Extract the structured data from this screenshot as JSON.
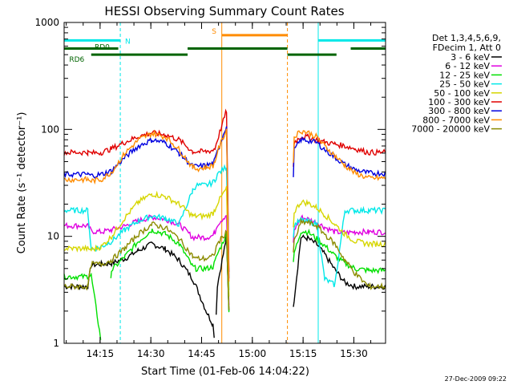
{
  "chart_data": {
    "type": "line",
    "title": "HESSI Observing Summary Count Rates",
    "xlabel": "Start Time (01-Feb-06 14:04:22)",
    "ylabel": "Count Rate (s⁻¹ detector⁻¹)",
    "yscale": "log",
    "ylim": [
      1,
      1000
    ],
    "xlim_minutes": [
      0,
      95
    ],
    "x_unit": "minutes after 14:04:22",
    "y_tick_labels": [
      "1",
      "10",
      "100",
      "1000"
    ],
    "y_tick_values": [
      1,
      10,
      100,
      1000
    ],
    "x_tick_labels": [
      "14:15",
      "14:30",
      "14:45",
      "15:00",
      "15:15",
      "15:30"
    ],
    "x_tick_values": [
      10.63,
      25.63,
      40.63,
      55.63,
      70.63,
      85.63
    ],
    "legend_header": [
      "Det 1,3,4,5,6,9,",
      "FDecim 1, Att 0"
    ],
    "legend_placement": "right",
    "series": [
      {
        "name": "3 - 6 keV",
        "color": "#000000",
        "x": [
          0,
          7,
          8,
          11,
          14,
          18,
          22,
          26,
          30,
          34,
          38,
          39,
          42,
          44,
          44.6,
          45.3,
          48,
          49,
          53,
          62,
          66,
          68,
          70,
          72,
          74.7,
          77,
          80,
          83,
          86,
          90,
          95
        ],
        "y": [
          3.4,
          3.4,
          5.4,
          5.5,
          5.6,
          6.2,
          7.4,
          8.5,
          7.6,
          6.0,
          4.0,
          3.4,
          2.0,
          1.5,
          1.0,
          3.5,
          9.8,
          1.0,
          1.0,
          1.0,
          1.0,
          2.6,
          9.8,
          9.6,
          8.4,
          6.8,
          4.9,
          3.7,
          3.4,
          3.4,
          3.4
        ]
      },
      {
        "name": "6 - 12 keV",
        "color": "#e000e0",
        "x": [
          0,
          7,
          8,
          11,
          14,
          18,
          22,
          26,
          30,
          34,
          38,
          39,
          42,
          44,
          44.6,
          45.3,
          48,
          49,
          53,
          62,
          66,
          68,
          70,
          72,
          74.7,
          77,
          80,
          83,
          86,
          90,
          95
        ],
        "y": [
          12.6,
          12.6,
          11.2,
          11.0,
          11.5,
          12.5,
          14.0,
          15.2,
          14.5,
          13.0,
          9.8,
          9.8,
          9.8,
          10.2,
          11.0,
          13.0,
          16.0,
          1.0,
          1.0,
          1.0,
          1.0,
          11.5,
          15.0,
          14.5,
          13.5,
          12.2,
          11.0,
          10.8,
          11.0,
          11.0,
          11.0
        ]
      },
      {
        "name": "12 - 25 keV",
        "color": "#00e000",
        "x": [
          0,
          7,
          8,
          11,
          14,
          18,
          22,
          26,
          30,
          34,
          38,
          39,
          42,
          44,
          44.6,
          45.3,
          48,
          49,
          53,
          62,
          66,
          68,
          70,
          72,
          74.7,
          77,
          80,
          83,
          86,
          90,
          95
        ],
        "y": [
          4.2,
          4.2,
          4.3,
          1.0,
          4.8,
          6.5,
          9.0,
          11.5,
          10.5,
          8.5,
          5.2,
          5.0,
          5.0,
          5.2,
          5.8,
          6.8,
          10.5,
          1.0,
          1.0,
          1.0,
          1.0,
          7.0,
          11.2,
          11.0,
          9.5,
          8.2,
          6.6,
          5.6,
          5.0,
          4.8,
          4.8
        ]
      },
      {
        "name": "25 - 50 keV",
        "color": "#00e8e8",
        "x": [
          0,
          7,
          8,
          11,
          14,
          18,
          22,
          26,
          30,
          34,
          38,
          39,
          42,
          44,
          44.6,
          45.3,
          48,
          49,
          53,
          62,
          66,
          68,
          70,
          72,
          74.7,
          77,
          80,
          83,
          86,
          90,
          95
        ],
        "y": [
          17.5,
          17.5,
          7.5,
          8.0,
          9.0,
          11.5,
          14.0,
          15.5,
          14.8,
          13.0,
          27.0,
          30.0,
          30.0,
          32.0,
          34.0,
          38.0,
          45.0,
          1.0,
          1.0,
          1.0,
          1.0,
          12.8,
          14.2,
          13.8,
          13.0,
          4.0,
          3.5,
          17.5,
          17.5,
          17.5,
          17.5
        ]
      },
      {
        "name": "50 - 100 keV",
        "color": "#d6d600",
        "x": [
          0,
          7,
          8,
          11,
          14,
          18,
          22,
          26,
          30,
          34,
          38,
          39,
          42,
          44,
          44.6,
          45.3,
          48,
          49,
          53,
          62,
          66,
          68,
          70,
          72,
          74.7,
          77,
          80,
          83,
          86,
          90,
          95
        ],
        "y": [
          7.7,
          7.7,
          7.5,
          8.0,
          10.0,
          15.0,
          21.0,
          25.0,
          23.5,
          20.0,
          15.5,
          15.5,
          15.5,
          16.5,
          18.0,
          20.5,
          28.0,
          1.0,
          1.0,
          1.0,
          1.0,
          17.0,
          21.0,
          20.5,
          18.5,
          16.0,
          13.0,
          10.5,
          9.0,
          8.5,
          8.5
        ]
      },
      {
        "name": "100 - 300 keV",
        "color": "#e00000",
        "x": [
          0,
          7,
          8,
          11,
          14,
          18,
          22,
          26,
          30,
          34,
          38,
          39,
          42,
          44,
          44.6,
          45.3,
          48,
          49,
          53,
          62,
          66,
          68,
          70,
          72,
          74.7,
          77,
          80,
          83,
          86,
          90,
          95
        ],
        "y": [
          61,
          61,
          60,
          61,
          66,
          76,
          86,
          93,
          89,
          80,
          62,
          62,
          62,
          64,
          67,
          80,
          150,
          1.0,
          1.0,
          1.0,
          1.0,
          76,
          86,
          85,
          80,
          76,
          73,
          70,
          66,
          61,
          61
        ]
      },
      {
        "name": "300 - 800 keV",
        "color": "#0000e0",
        "x": [
          0,
          7,
          8,
          11,
          14,
          18,
          22,
          26,
          30,
          34,
          38,
          39,
          42,
          44,
          44.6,
          45.3,
          48,
          49,
          53,
          62,
          66,
          68,
          70,
          72,
          74.7,
          77,
          80,
          83,
          86,
          90,
          95
        ],
        "y": [
          38,
          38,
          37,
          38,
          41,
          55,
          70,
          80,
          75,
          60,
          45,
          45,
          46,
          48,
          52,
          62,
          110,
          1.0,
          1.0,
          1.0,
          1.0,
          64,
          80,
          79,
          75,
          65,
          55,
          47,
          42,
          39,
          39
        ]
      },
      {
        "name": "800 - 7000 keV",
        "color": "#ff8c00",
        "x": [
          0,
          7,
          8,
          11,
          14,
          18,
          22,
          26,
          30,
          34,
          38,
          39,
          42,
          44,
          44.6,
          45.3,
          48,
          49,
          53,
          62,
          66,
          68,
          70,
          72,
          74.7,
          77,
          80,
          83,
          86,
          90,
          95
        ],
        "y": [
          34,
          34,
          33,
          34,
          40,
          60,
          80,
          92,
          85,
          65,
          44,
          43,
          44,
          46,
          50,
          62,
          100,
          1.0,
          1.0,
          1.0,
          1.0,
          86,
          97,
          94,
          85,
          70,
          57,
          46,
          39,
          35,
          35
        ]
      },
      {
        "name": "7000 - 20000 keV",
        "color": "#8b8b00",
        "x": [
          0,
          7,
          8,
          11,
          14,
          18,
          22,
          26,
          30,
          34,
          38,
          39,
          42,
          44,
          44.6,
          45.3,
          48,
          49,
          53,
          62,
          66,
          68,
          70,
          72,
          74.7,
          77,
          80,
          83,
          86,
          90,
          95
        ],
        "y": [
          3.4,
          3.4,
          5.5,
          5.5,
          6.0,
          7.8,
          10.5,
          13.0,
          12.0,
          9.5,
          6.5,
          6.2,
          6.2,
          6.5,
          7.2,
          8.5,
          11.0,
          1.0,
          1.0,
          1.0,
          1.0,
          9.0,
          13.5,
          13.5,
          12.5,
          10.5,
          8.5,
          6.0,
          4.5,
          3.4,
          3.4
        ]
      }
    ],
    "flags": [
      {
        "label": "N",
        "color": "#00e8e8",
        "level": 680,
        "segments": [
          [
            0,
            16.6
          ],
          [
            75.1,
            95
          ]
        ],
        "vlines": [
          0,
          16.6,
          75.1,
          95
        ],
        "vline_style": "dashed"
      },
      {
        "label": "S",
        "color": "#ff8c00",
        "level": 760,
        "segments": [
          [
            46.6,
            66
          ]
        ],
        "vlines": [
          46.6,
          66
        ],
        "vline_style": "mixed"
      },
      {
        "label": "RD0",
        "color": "#006400",
        "level": 570,
        "segments": [
          [
            0,
            16
          ],
          [
            36.5,
            66
          ],
          [
            84.7,
            95
          ]
        ]
      },
      {
        "label": "RD6",
        "color": "#006400",
        "level": 500,
        "segments": [
          [
            8,
            36.5
          ],
          [
            66,
            80.5
          ]
        ]
      }
    ]
  },
  "footer_timestamp": "27-Dec-2009 09:22"
}
